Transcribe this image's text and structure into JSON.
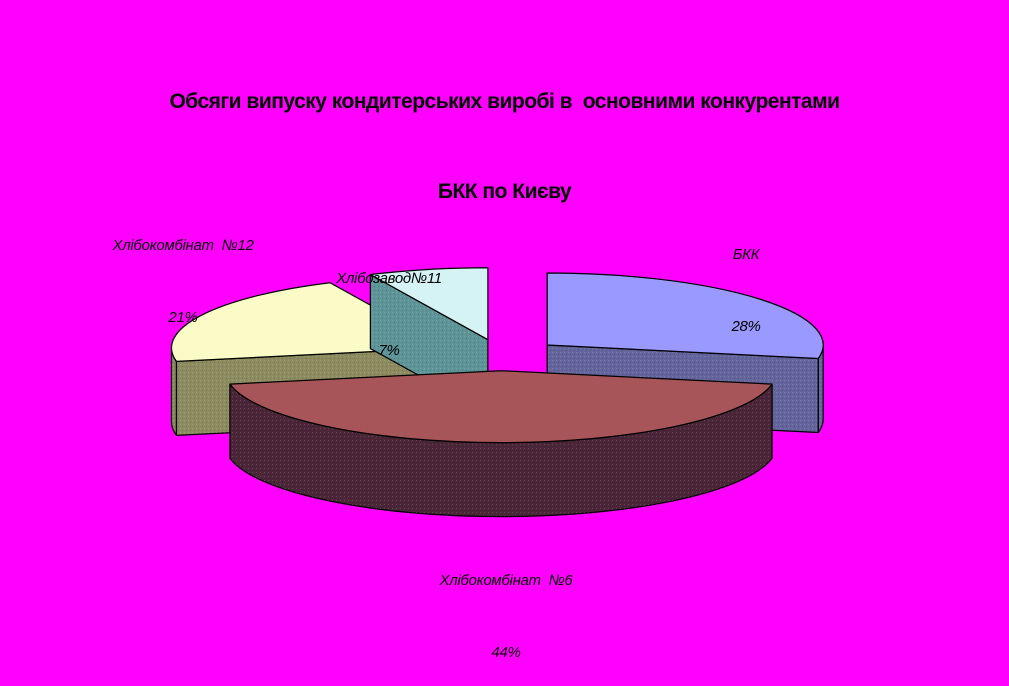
{
  "background_color": "#FF00FF",
  "title": {
    "line1": "Обсяги випуску кондитерських виробі в  основними конкурентами",
    "line2": "БКК по Києву"
  },
  "chart_data": {
    "type": "pie",
    "is_3d": true,
    "exploded": true,
    "start_angle_deg": 0,
    "direction": "clockwise",
    "legend_position": "none",
    "title": "Обсяги випуску кондитерських виробі в  основними конкурентами БКК по Києву",
    "categories": [
      "БКК",
      "Хлібокомбінат  №6",
      "Хлібокомбінат  №12",
      "Хлібозавод№11"
    ],
    "values": [
      28,
      44,
      21,
      7
    ],
    "unit": "%",
    "outline_color": "#000000",
    "slices": [
      {
        "label": "БКК",
        "pct_label": "28%",
        "value": 28,
        "top_color": "#9999FF",
        "side_color": "#63659C"
      },
      {
        "label": "Хлібокомбінат  №6",
        "pct_label": "44%",
        "value": 44,
        "top_color": "#A85559",
        "side_color": "#4A2638"
      },
      {
        "label": "Хлібокомбінат  №12",
        "pct_label": "21%",
        "value": 21,
        "top_color": "#FBFBC8",
        "side_color": "#8C8C60"
      },
      {
        "label": "Хлібозавод№11",
        "pct_label": "7%",
        "value": 7,
        "top_color": "#D5F2F5",
        "side_color": "#5E9599"
      }
    ]
  }
}
